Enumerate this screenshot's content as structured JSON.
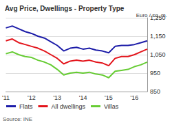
{
  "chart_data": {
    "type": "line",
    "title": "Avg Price, Dwellings - Property Type",
    "ylabel": "Euro / sq. m.",
    "source": "Source: INE",
    "categories": [
      "'11",
      null,
      null,
      null,
      "'12",
      null,
      null,
      null,
      "'13",
      null,
      null,
      null,
      "'14",
      null,
      null,
      null,
      "'15",
      null,
      null,
      null,
      "'16",
      null,
      null
    ],
    "series": [
      {
        "name": "Flats",
        "color": "#1c1ca8",
        "values": [
          1195,
          1205,
          1190,
          1175,
          1165,
          1150,
          1140,
          1120,
          1100,
          1070,
          1085,
          1090,
          1080,
          1085,
          1075,
          1070,
          1060,
          1095,
          1100,
          1100,
          1105,
          1115,
          1125
        ]
      },
      {
        "name": "All dwellings",
        "color": "#e3141b",
        "values": [
          1125,
          1135,
          1115,
          1105,
          1095,
          1085,
          1070,
          1050,
          1030,
          1000,
          1015,
          1020,
          1015,
          1020,
          1010,
          1005,
          990,
          1030,
          1040,
          1040,
          1050,
          1065,
          1080
        ]
      },
      {
        "name": "Villas",
        "color": "#66cc33",
        "values": [
          1055,
          1065,
          1050,
          1040,
          1035,
          1020,
          1010,
          995,
          970,
          940,
          950,
          955,
          950,
          955,
          945,
          940,
          925,
          960,
          965,
          970,
          985,
          995,
          1010
        ]
      }
    ],
    "ylim": [
      850,
      1250
    ],
    "yticks": [
      850,
      950,
      {
        "value": 1050,
        "label": "1,050"
      },
      {
        "value": 1150,
        "label": "1,150"
      },
      {
        "value": 1250,
        "label": "1,250"
      }
    ],
    "grid": true,
    "legend": "bottom"
  }
}
